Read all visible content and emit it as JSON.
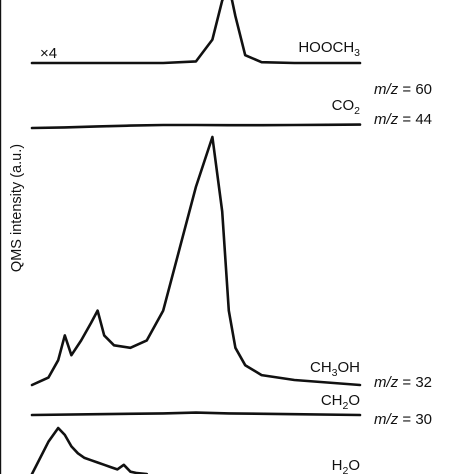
{
  "chart_data": {
    "type": "line",
    "title": "",
    "xlabel": "",
    "ylabel": "QMS intensity (a.u.)",
    "xlim": [
      0,
      100
    ],
    "y_units": "arbitrary, stacked offsets",
    "grid": false,
    "legend": "none",
    "annotations": [
      {
        "text": "×4",
        "series": "HOOCH3"
      }
    ],
    "series": [
      {
        "name": "HOOCH3",
        "label_parts": [
          "HOOCH",
          "3",
          ""
        ],
        "mz_value": "60",
        "multiplier": "×4",
        "x": [
          0,
          10,
          20,
          30,
          40,
          50,
          55,
          58,
          60,
          62,
          65,
          70,
          80,
          90,
          100
        ],
        "y": [
          0,
          0,
          0,
          0,
          0,
          0.02,
          0.3,
          0.8,
          1.0,
          0.6,
          0.1,
          0.01,
          0,
          0,
          0
        ]
      },
      {
        "name": "CO2",
        "label_parts": [
          "CO",
          "2",
          ""
        ],
        "mz_value": "44",
        "x": [
          0,
          10,
          20,
          30,
          40,
          50,
          60,
          70,
          80,
          90,
          100
        ],
        "y": [
          0,
          0.03,
          0.08,
          0.12,
          0.15,
          0.15,
          0.14,
          0.14,
          0.15,
          0.16,
          0.17
        ]
      },
      {
        "name": "CH3OH",
        "label_parts": [
          "CH",
          "3",
          "OH"
        ],
        "mz_value": "32",
        "x": [
          0,
          5,
          8,
          10,
          12,
          15,
          18,
          20,
          22,
          25,
          30,
          35,
          40,
          45,
          50,
          55,
          58,
          60,
          62,
          65,
          70,
          80,
          90,
          100
        ],
        "y": [
          0,
          0.03,
          0.1,
          0.2,
          0.12,
          0.18,
          0.25,
          0.3,
          0.2,
          0.16,
          0.15,
          0.18,
          0.3,
          0.55,
          0.8,
          1.0,
          0.7,
          0.3,
          0.15,
          0.08,
          0.04,
          0.02,
          0.01,
          0
        ]
      },
      {
        "name": "CH2O",
        "label_parts": [
          "CH",
          "2",
          "O"
        ],
        "mz_value": "30",
        "x": [
          0,
          20,
          40,
          50,
          60,
          80,
          100
        ],
        "y": [
          0,
          0.01,
          0.02,
          0.03,
          0.02,
          0.01,
          0
        ]
      },
      {
        "name": "H2O",
        "label_parts": [
          "H",
          "2",
          "O"
        ],
        "x": [
          0,
          5,
          8,
          10,
          12,
          14,
          16,
          18,
          20,
          22,
          24,
          26,
          28,
          30,
          32,
          35
        ],
        "y": [
          0,
          0.7,
          1.0,
          0.85,
          0.6,
          0.45,
          0.35,
          0.3,
          0.25,
          0.2,
          0.15,
          0.1,
          0.2,
          0.05,
          0.02,
          0
        ]
      }
    ]
  }
}
